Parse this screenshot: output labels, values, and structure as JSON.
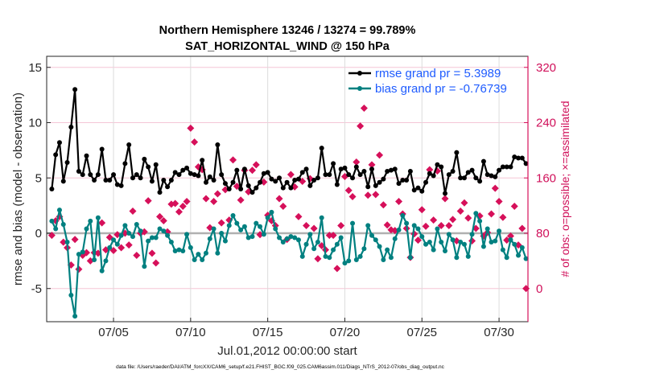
{
  "chart_data": {
    "type": "line",
    "title": [
      "Northern Hemisphere 13246 / 13274 = 99.789%",
      "SAT_HORIZONTAL_WIND @ 150 hPa"
    ],
    "xlabel": "Jul.01,2012 00:00:00 start",
    "ylabel": "rmse and bias (model - observation)",
    "y2label": "# of obs: o=possible; ×=assimilated",
    "footnote": "data file: /Users/raeder/DAI/ATM_forcXX/CAM6_setup/f.e21.FHIST_BGC.f09_025.CAM6assim.011/Diags_NTrS_2012-07/obs_diag_output.nc",
    "xlim": [
      "06/30 16Z",
      "07/31 21Z"
    ],
    "ylim": [
      -8,
      16
    ],
    "y2lim": [
      -48,
      336
    ],
    "xticks": [
      {
        "label": "07/05",
        "date": "07/05 00Z"
      },
      {
        "label": "07/10",
        "date": "07/10 00Z"
      },
      {
        "label": "07/15",
        "date": "07/15 00Z"
      },
      {
        "label": "07/20",
        "date": "07/20 00Z"
      },
      {
        "label": "07/25",
        "date": "07/25 00Z"
      },
      {
        "label": "07/30",
        "date": "07/30 00Z"
      }
    ],
    "yticks": [
      "-5",
      "0",
      "5",
      "10",
      "15"
    ],
    "y2ticks": [
      "0",
      "80",
      "160",
      "240",
      "320"
    ],
    "grid": true,
    "legend_placement": "top-right",
    "colors": {
      "rmse": "#000000",
      "bias": "#008080",
      "obs": "#d6105a",
      "legend_text": "#1f5cff",
      "zero_line": "#b0b0b0"
    },
    "x": [
      "07/01 00Z",
      "07/01 06Z",
      "07/01 12Z",
      "07/01 18Z",
      "07/02 00Z",
      "07/02 06Z",
      "07/02 12Z",
      "07/02 18Z",
      "07/03 00Z",
      "07/03 06Z",
      "07/03 12Z",
      "07/03 18Z",
      "07/04 00Z",
      "07/04 06Z",
      "07/04 12Z",
      "07/04 18Z",
      "07/05 00Z",
      "07/05 06Z",
      "07/05 12Z",
      "07/05 18Z",
      "07/06 00Z",
      "07/06 06Z",
      "07/06 12Z",
      "07/06 18Z",
      "07/07 00Z",
      "07/07 06Z",
      "07/07 12Z",
      "07/07 18Z",
      "07/08 00Z",
      "07/08 06Z",
      "07/08 12Z",
      "07/08 18Z",
      "07/09 00Z",
      "07/09 06Z",
      "07/09 12Z",
      "07/09 18Z",
      "07/10 00Z",
      "07/10 06Z",
      "07/10 12Z",
      "07/10 18Z",
      "07/11 00Z",
      "07/11 06Z",
      "07/11 12Z",
      "07/11 18Z",
      "07/12 00Z",
      "07/12 06Z",
      "07/12 12Z",
      "07/12 18Z",
      "07/13 00Z",
      "07/13 06Z",
      "07/13 12Z",
      "07/13 18Z",
      "07/14 00Z",
      "07/14 06Z",
      "07/14 12Z",
      "07/14 18Z",
      "07/15 00Z",
      "07/15 06Z",
      "07/15 12Z",
      "07/15 18Z",
      "07/16 00Z",
      "07/16 06Z",
      "07/16 12Z",
      "07/16 18Z",
      "07/17 00Z",
      "07/17 06Z",
      "07/17 12Z",
      "07/17 18Z",
      "07/18 00Z",
      "07/18 06Z",
      "07/18 12Z",
      "07/18 18Z",
      "07/19 00Z",
      "07/19 06Z",
      "07/19 12Z",
      "07/19 18Z",
      "07/20 00Z",
      "07/20 06Z",
      "07/20 12Z",
      "07/20 18Z",
      "07/21 00Z",
      "07/21 06Z",
      "07/21 12Z",
      "07/21 18Z",
      "07/22 00Z",
      "07/22 06Z",
      "07/22 12Z",
      "07/22 18Z",
      "07/23 00Z",
      "07/23 06Z",
      "07/23 12Z",
      "07/23 18Z",
      "07/24 00Z",
      "07/24 06Z",
      "07/24 12Z",
      "07/24 18Z",
      "07/25 00Z",
      "07/25 06Z",
      "07/25 12Z",
      "07/25 18Z",
      "07/26 00Z",
      "07/26 06Z",
      "07/26 12Z",
      "07/26 18Z",
      "07/27 00Z",
      "07/27 06Z",
      "07/27 12Z",
      "07/27 18Z",
      "07/28 00Z",
      "07/28 06Z",
      "07/28 12Z",
      "07/28 18Z",
      "07/29 00Z",
      "07/29 06Z",
      "07/29 12Z",
      "07/29 18Z",
      "07/30 00Z",
      "07/30 06Z",
      "07/30 12Z",
      "07/30 18Z",
      "07/31 00Z",
      "07/31 06Z",
      "07/31 12Z",
      "07/31 18Z"
    ],
    "series": [
      {
        "name": "rmse grand pr = 5.3989",
        "axis": "left",
        "values": [
          4.0,
          7.1,
          8.2,
          4.7,
          6.4,
          9.6,
          13.0,
          5.6,
          5.3,
          7.0,
          5.3,
          4.8,
          5.3,
          7.6,
          4.8,
          4.8,
          5.3,
          4.4,
          4.3,
          6.3,
          8.0,
          5.0,
          5.3,
          5.0,
          6.7,
          6.0,
          4.7,
          6.2,
          3.7,
          4.8,
          4.2,
          4.8,
          5.5,
          5.3,
          5.7,
          5.9,
          5.4,
          5.3,
          5.2,
          6.6,
          4.6,
          5.1,
          4.8,
          8.0,
          5.3,
          4.5,
          4.0,
          4.6,
          5.7,
          4.0,
          5.8,
          4.3,
          3.7,
          4.1,
          4.6,
          5.4,
          5.5,
          4.9,
          4.7,
          5.0,
          4.1,
          4.6,
          4.1,
          4.8,
          4.9,
          5.5,
          5.8,
          4.3,
          4.8,
          5.0,
          7.7,
          5.3,
          5.3,
          6.3,
          4.4,
          5.8,
          5.9,
          5.3,
          5.0,
          6.0,
          5.3,
          5.6,
          4.2,
          5.8,
          4.3,
          4.6,
          4.9,
          5.6,
          5.7,
          5.8,
          4.5,
          4.8,
          4.8,
          5.6,
          3.9,
          4.1,
          3.8,
          4.6,
          5.4,
          5.2,
          6.2,
          6.0,
          3.6,
          5.3,
          5.6,
          7.3,
          5.0,
          5.0,
          5.5,
          5.7,
          5.0,
          4.7,
          6.5,
          5.3,
          5.2,
          5.1,
          5.7,
          6.0,
          6.0,
          6.0,
          6.9,
          6.8,
          6.8,
          6.3
        ]
      },
      {
        "name": "bias grand pr = -0.76739",
        "axis": "left",
        "values": [
          1.1,
          0.4,
          2.1,
          0.8,
          -0.8,
          -5.6,
          -7.5,
          -1.9,
          -1.7,
          0.4,
          1.1,
          -2.4,
          1.4,
          -3.4,
          -2.5,
          -1.3,
          -0.6,
          -1.0,
          -0.2,
          0.7,
          0.0,
          -0.3,
          0.8,
          0.2,
          -3.0,
          -0.7,
          -0.4,
          -0.4,
          0.4,
          0.2,
          -0.2,
          -0.8,
          -1.6,
          -1.5,
          -1.6,
          -0.1,
          -1.3,
          -2.4,
          -1.9,
          -2.4,
          -1.8,
          -0.5,
          0.4,
          -1.8,
          0.0,
          -0.7,
          0.7,
          1.6,
          0.9,
          0.3,
          0.6,
          -0.4,
          -0.3,
          0.9,
          0.6,
          -0.1,
          1.4,
          1.9,
          0.4,
          -0.4,
          -0.8,
          -0.5,
          -0.3,
          -0.4,
          -0.6,
          -2.1,
          -1.0,
          -0.1,
          -1.4,
          -0.8,
          1.4,
          -2.1,
          -2.2,
          -1.5,
          -1.0,
          -0.4,
          -2.7,
          -2.5,
          0.9,
          -2.4,
          -2.1,
          -1.4,
          0.7,
          -0.2,
          -0.6,
          -1.2,
          -2.4,
          -1.5,
          -2.2,
          -0.5,
          0.3,
          1.6,
          0.9,
          -2.2,
          0.7,
          0.4,
          -0.3,
          -1.0,
          -0.8,
          -1.5,
          0.4,
          -0.8,
          -1.6,
          -0.1,
          -0.6,
          -2.2,
          -0.8,
          -1.0,
          -2.1,
          -0.1,
          1.8,
          1.1,
          -1.2,
          0.4,
          -0.8,
          -0.7,
          0.2,
          -1.5,
          -2.2,
          -0.6,
          -1.0,
          -2.0,
          -1.3,
          -2.3
        ]
      },
      {
        "axis": "right",
        "values": [
          77,
          98,
          104,
          67,
          59,
          34,
          71,
          28,
          48,
          52,
          40,
          52,
          51,
          95,
          56,
          74,
          55,
          78,
          59,
          80,
          63,
          112,
          48,
          80,
          82,
          127,
          51,
          37,
          104,
          98,
          82,
          122,
          123,
          111,
          119,
          126,
          232,
          212,
          176,
          172,
          130,
          88,
          126,
          137,
          95,
          143,
          99,
          186,
          148,
          128,
          171,
          140,
          171,
          179,
          78,
          154,
          106,
          98,
          91,
          130,
          119,
          71,
          165,
          147,
          104,
          155,
          91,
          159,
          87,
          43,
          62,
          56,
          77,
          77,
          29,
          91,
          162,
          142,
          133,
          183,
          235,
          261,
          135,
          179,
          136,
          193,
          121,
          92,
          85,
          84,
          126,
          108,
          87,
          45,
          79,
          70,
          114,
          90,
          172,
          99,
          170,
          91,
          130,
          91,
          100,
          69,
          112,
          124,
          102,
          69,
          87,
          105,
          76,
          81,
          108,
          145,
          126,
          103,
          70,
          76,
          119,
          63,
          87,
          0
        ]
      }
    ]
  }
}
